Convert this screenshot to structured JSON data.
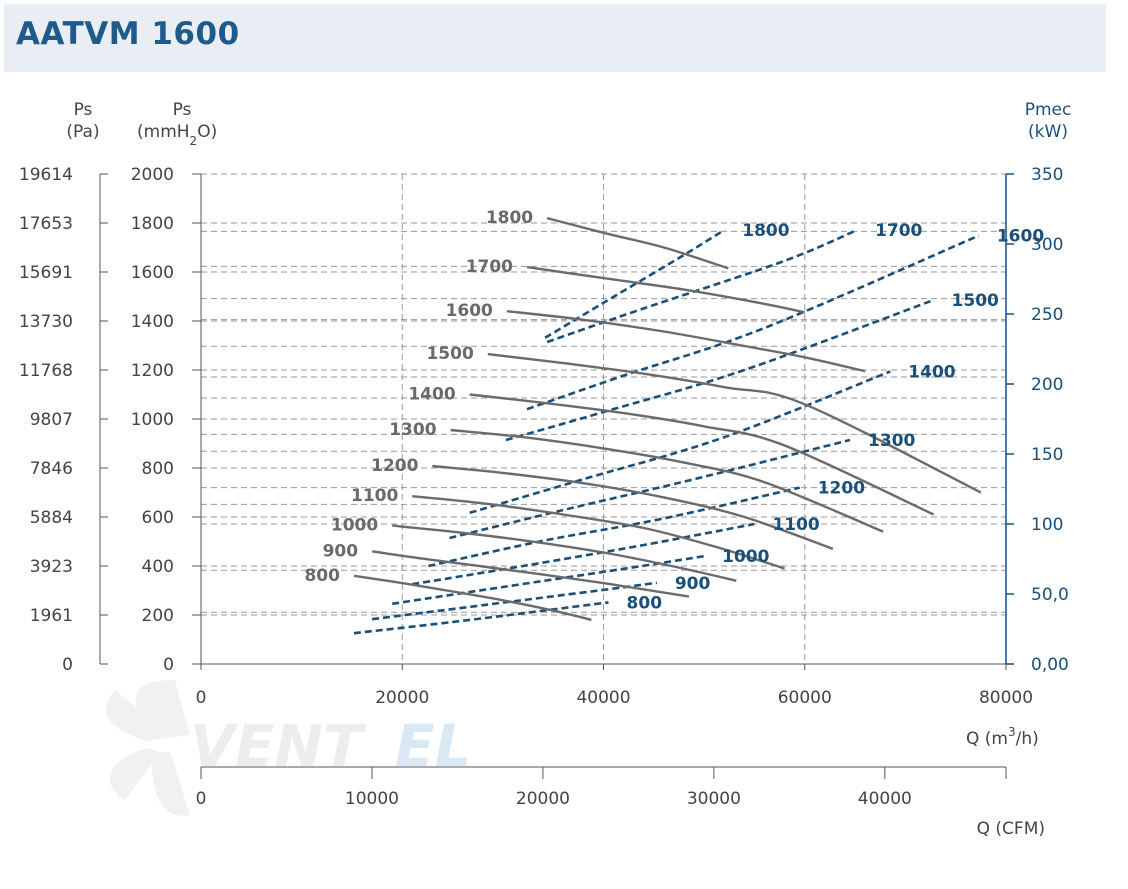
{
  "title": "AATVM 1600",
  "logo": "VENTEL",
  "colors": {
    "pressure": "#6b6b6b",
    "power": "#1a4f7a",
    "grid": "#9a9a9a",
    "title_bg": "#e8eef4"
  },
  "axes": {
    "ps_pa_title": [
      "Ps",
      "(Pa)"
    ],
    "ps_mm_title": [
      "Ps",
      "(mmH",
      "2",
      "O)"
    ],
    "pmec_title": [
      "Pmec",
      "(kW)"
    ],
    "q_m3h_title": [
      "Q (m",
      "3",
      "/h)"
    ],
    "q_cfm_title": "Q (CFM)",
    "pa_ticks": [
      "19614",
      "17653",
      "15691",
      "13730",
      "11768",
      "9807",
      "7846",
      "5884",
      "3923",
      "1961",
      "0"
    ],
    "mm_ticks": [
      2000,
      1800,
      1600,
      1400,
      1200,
      1000,
      800,
      600,
      400,
      200,
      0
    ],
    "kw_ticks": [
      "350",
      "300",
      "250",
      "200",
      "150",
      "100",
      "50,0",
      "0,00"
    ],
    "kw_values": [
      350,
      300,
      250,
      200,
      150,
      100,
      50,
      0
    ],
    "q_ticks": [
      0,
      20000,
      40000,
      60000,
      80000
    ],
    "cfm_ticks": [
      0,
      10000,
      20000,
      30000,
      40000
    ],
    "kw_gridlines": [
      309,
      284,
      261,
      246,
      227,
      205,
      190,
      164,
      152,
      126,
      114,
      100,
      67,
      37
    ]
  },
  "chart_data": {
    "type": "line",
    "title": "AATVM 1600",
    "x": {
      "label": "Q (m3/h)",
      "range": [
        0,
        80000
      ]
    },
    "y_left": {
      "label": "Ps (mmH2O)",
      "range": [
        0,
        2000
      ]
    },
    "y_right": {
      "label": "Pmec (kW)",
      "range": [
        0,
        350
      ]
    },
    "grid": true,
    "pressure_series": [
      {
        "name": "800",
        "x": [
          15200,
          20000,
          25000,
          30000,
          35000,
          38800
        ],
        "y": [
          360,
          330,
          296,
          260,
          218,
          180
        ]
      },
      {
        "name": "900",
        "x": [
          17000,
          22000,
          28000,
          34000,
          40000,
          48500
        ],
        "y": [
          460,
          430,
          398,
          365,
          330,
          275
        ]
      },
      {
        "name": "1000",
        "x": [
          19000,
          25000,
          32000,
          40000,
          47000,
          53200
        ],
        "y": [
          565,
          540,
          505,
          455,
          398,
          340
        ]
      },
      {
        "name": "1100",
        "x": [
          21000,
          28000,
          36000,
          44000,
          51000,
          58000
        ],
        "y": [
          685,
          656,
          610,
          555,
          480,
          390
        ]
      },
      {
        "name": "1200",
        "x": [
          23000,
          30000,
          38000,
          46000,
          54000,
          62800
        ],
        "y": [
          808,
          780,
          738,
          680,
          600,
          470
        ]
      },
      {
        "name": "1300",
        "x": [
          24800,
          32000,
          40000,
          48000,
          56000,
          67800
        ],
        "y": [
          955,
          926,
          880,
          822,
          742,
          540
        ]
      },
      {
        "name": "1400",
        "x": [
          26700,
          34000,
          42000,
          50000,
          58000,
          72800
        ],
        "y": [
          1100,
          1066,
          1024,
          970,
          892,
          610
        ]
      },
      {
        "name": "1500",
        "x": [
          28500,
          36000,
          44000,
          52000,
          60000,
          77500
        ],
        "y": [
          1265,
          1228,
          1185,
          1130,
          1060,
          700
        ]
      },
      {
        "name": "1600",
        "x": [
          30400,
          38000,
          46000,
          54000,
          60000,
          66000
        ],
        "y": [
          1440,
          1405,
          1357,
          1298,
          1252,
          1195
        ]
      },
      {
        "name": "1700",
        "x": [
          32400,
          40000,
          48000,
          56000,
          60000
        ],
        "y": [
          1620,
          1575,
          1528,
          1470,
          1435
        ]
      },
      {
        "name": "1800",
        "x": [
          34400,
          40000,
          46000,
          52400
        ],
        "y": [
          1820,
          1760,
          1700,
          1615
        ]
      }
    ],
    "power_series": [
      {
        "name": "800",
        "x": [
          15200,
          25000,
          35000,
          40500
        ],
        "y": [
          22,
          30,
          39,
          44
        ]
      },
      {
        "name": "900",
        "x": [
          17000,
          28000,
          39000,
          45300
        ],
        "y": [
          32,
          42,
          52,
          58
        ]
      },
      {
        "name": "1000",
        "x": [
          19000,
          30000,
          42000,
          50000
        ],
        "y": [
          43,
          55,
          68,
          77
        ]
      },
      {
        "name": "1100",
        "x": [
          21000,
          32000,
          44000,
          55000
        ],
        "y": [
          57,
          70,
          85,
          100
        ]
      },
      {
        "name": "1200",
        "x": [
          22600,
          34000,
          46000,
          59500
        ],
        "y": [
          70,
          88,
          104,
          126
        ]
      },
      {
        "name": "1300",
        "x": [
          24700,
          36000,
          49000,
          64500
        ],
        "y": [
          90,
          110,
          132,
          160
        ]
      },
      {
        "name": "1400",
        "x": [
          26700,
          38000,
          52000,
          68500
        ],
        "y": [
          108,
          132,
          162,
          209
        ]
      },
      {
        "name": "1500",
        "x": [
          30300,
          40000,
          54000,
          72800
        ],
        "y": [
          160,
          180,
          210,
          260
        ]
      },
      {
        "name": "1600",
        "x": [
          32400,
          42000,
          56000,
          77300
        ],
        "y": [
          182,
          206,
          240,
          306
        ]
      },
      {
        "name": "1700",
        "x": [
          34400,
          44000,
          58000,
          65200
        ],
        "y": [
          230,
          254,
          288,
          310
        ]
      },
      {
        "name": "1800",
        "x": [
          34200,
          40000,
          47500,
          52000
        ],
        "y": [
          233,
          258,
          290,
          310
        ]
      }
    ]
  }
}
